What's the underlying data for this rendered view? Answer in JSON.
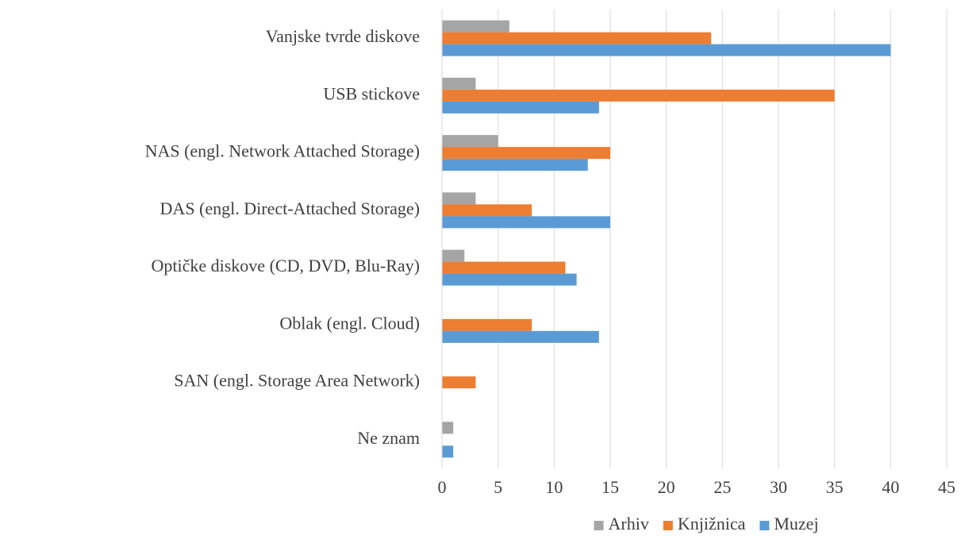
{
  "chart_data": {
    "type": "bar",
    "orientation": "horizontal",
    "categories": [
      "Vanjske tvrde diskove",
      "USB stickove",
      "NAS (engl. Network Attached Storage)",
      "DAS (engl. Direct-Attached Storage)",
      "Optičke diskove (CD, DVD, Blu-Ray)",
      "Oblak (engl. Cloud)",
      "SAN (engl. Storage Area Network)",
      "Ne znam"
    ],
    "series": [
      {
        "name": "Arhiv",
        "color": "#a5a5a5",
        "values": [
          6,
          3,
          5,
          3,
          2,
          0,
          0,
          1
        ]
      },
      {
        "name": "Knjižnica",
        "color": "#ed7d31",
        "values": [
          24,
          35,
          15,
          8,
          11,
          8,
          3,
          0
        ]
      },
      {
        "name": "Muzej",
        "color": "#5b9bd5",
        "values": [
          40,
          14,
          13,
          15,
          12,
          14,
          0,
          1
        ]
      }
    ],
    "xlim": [
      0,
      45
    ],
    "xticks": [
      0,
      5,
      10,
      15,
      20,
      25,
      30,
      35,
      40,
      45
    ],
    "grid": true,
    "legend": "bottom"
  }
}
